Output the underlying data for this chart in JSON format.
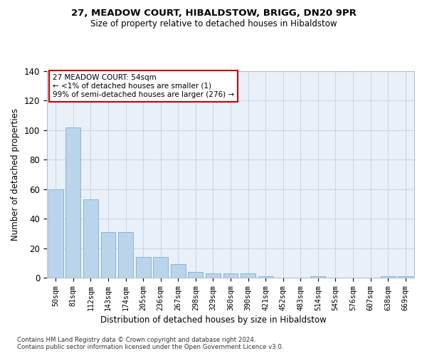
{
  "title": "27, MEADOW COURT, HIBALDSTOW, BRIGG, DN20 9PR",
  "subtitle": "Size of property relative to detached houses in Hibaldstow",
  "xlabel": "Distribution of detached houses by size in Hibaldstow",
  "ylabel": "Number of detached properties",
  "bar_color": "#bad4eb",
  "bar_edge_color": "#8ab4d8",
  "grid_color": "#c8d8ea",
  "bg_color": "#eaf0f8",
  "categories": [
    "50sqm",
    "81sqm",
    "112sqm",
    "143sqm",
    "174sqm",
    "205sqm",
    "236sqm",
    "267sqm",
    "298sqm",
    "329sqm",
    "360sqm",
    "390sqm",
    "421sqm",
    "452sqm",
    "483sqm",
    "514sqm",
    "545sqm",
    "576sqm",
    "607sqm",
    "638sqm",
    "669sqm"
  ],
  "values": [
    60,
    102,
    53,
    31,
    31,
    14,
    14,
    9,
    4,
    3,
    3,
    3,
    1,
    0,
    0,
    1,
    0,
    0,
    0,
    1,
    1
  ],
  "ylim": [
    0,
    140
  ],
  "yticks": [
    0,
    20,
    40,
    60,
    80,
    100,
    120,
    140
  ],
  "annotation_title": "27 MEADOW COURT: 54sqm",
  "annotation_line1": "← <1% of detached houses are smaller (1)",
  "annotation_line2": "99% of semi-detached houses are larger (276) →",
  "annotation_box_color": "#ffffff",
  "annotation_box_edge": "#cc0000",
  "footer1": "Contains HM Land Registry data © Crown copyright and database right 2024.",
  "footer2": "Contains public sector information licensed under the Open Government Licence v3.0."
}
